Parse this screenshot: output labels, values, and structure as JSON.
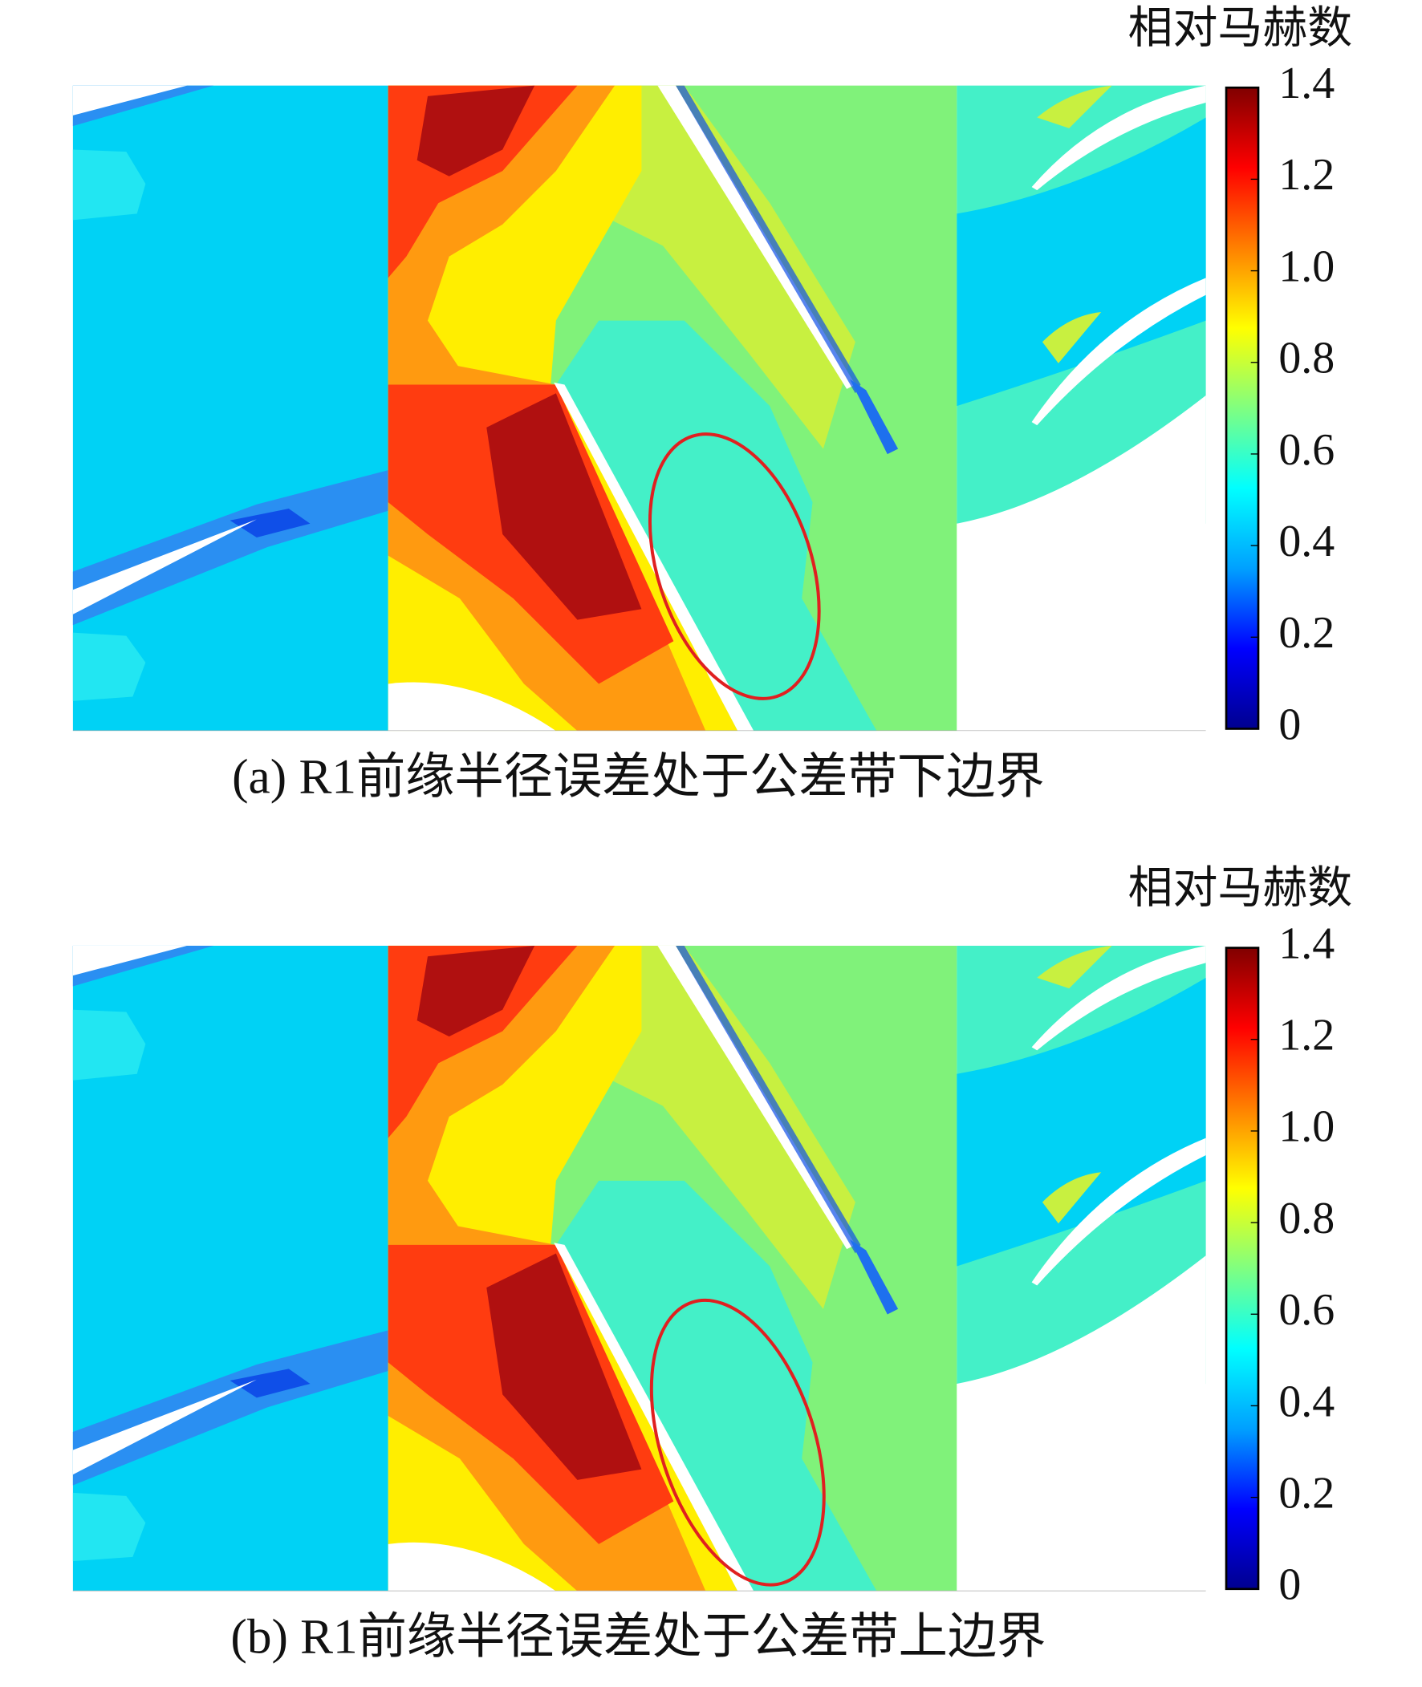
{
  "chart_data": [
    {
      "type": "contour",
      "colorbar_title": "相对马赫数",
      "colorbar_lim": [
        0,
        1.4
      ],
      "colorbar_ticks": [
        0,
        0.2,
        0.4,
        0.6,
        0.8,
        {
          "value": 1,
          "label": "1.0"
        },
        1.2,
        1.4
      ],
      "colormap": [
        "#00008f",
        "#0000ff",
        "#00a0ff",
        "#00ffff",
        "#80ff80",
        "#ffff00",
        "#ff8000",
        "#ff0000",
        "#800000"
      ],
      "caption": "(a) R1前缘半径误差处于公差带下边界"
    },
    {
      "type": "contour",
      "colorbar_title": "相对马赫数",
      "colorbar_lim": [
        0,
        1.4
      ],
      "colorbar_ticks": [
        0,
        0.2,
        0.4,
        0.6,
        0.8,
        {
          "value": 1,
          "label": "1.0"
        },
        1.2,
        1.4
      ],
      "colormap": [
        "#00008f",
        "#0000ff",
        "#00a0ff",
        "#00ffff",
        "#80ff80",
        "#ffff00",
        "#ff8000",
        "#ff0000",
        "#800000"
      ],
      "caption": "(b) R1前缘半径误差处于公差带上边界"
    }
  ]
}
